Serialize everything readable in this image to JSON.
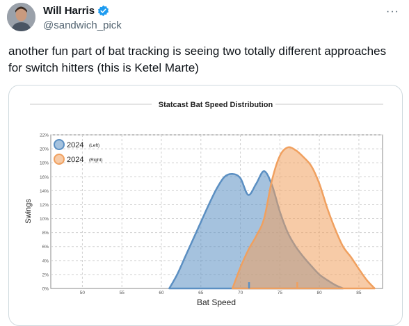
{
  "author": {
    "name": "Will Harris",
    "handle": "@sandwich_pick",
    "verified_icon": "verified-badge-icon",
    "more_icon": "more-horizontal-icon"
  },
  "tweet": {
    "text": "another fun part of bat tracking is seeing two totally different approaches for switch hitters (this is Ketel Marte)"
  },
  "colors": {
    "left": "#5b8fc2",
    "right": "#f0a05f",
    "accent": "#1d9bf0"
  },
  "chart_data": {
    "type": "area",
    "title": "Statcast Bat Speed Distribution",
    "xlabel": "Bat Speed",
    "ylabel": "Swings",
    "xlim": [
      46,
      88
    ],
    "ylim": [
      0,
      22
    ],
    "x_ticks": [
      "50",
      "55",
      "60",
      "65",
      "70",
      "75",
      "80",
      "85"
    ],
    "y_ticks": [
      "0%",
      "2%",
      "4%",
      "6%",
      "8%",
      "10%",
      "12%",
      "14%",
      "16%",
      "18%",
      "20%",
      "22%"
    ],
    "grid": true,
    "legend_position": "top-left",
    "series": [
      {
        "name": "2024",
        "qualifier": "(Left)",
        "color": "#5b8fc2",
        "marker": 71.1,
        "x": [
          61,
          62,
          63,
          64,
          65,
          66,
          67,
          68,
          69,
          70,
          71,
          72,
          73,
          74,
          75,
          76,
          77,
          78,
          79,
          80,
          81,
          82,
          83
        ],
        "y": [
          0,
          2.0,
          4.5,
          7.0,
          9.5,
          12.0,
          14.3,
          16.0,
          16.4,
          15.8,
          13.4,
          15.0,
          16.8,
          14.8,
          11.0,
          8.0,
          6.0,
          4.5,
          3.2,
          2.0,
          1.2,
          0.5,
          0
        ]
      },
      {
        "name": "2024",
        "qualifier": "(Right)",
        "color": "#f0a05f",
        "marker": 77.2,
        "x": [
          69,
          70,
          71,
          72,
          73,
          74,
          75,
          76,
          77,
          78,
          79,
          80,
          81,
          82,
          83,
          84,
          85,
          86,
          87
        ],
        "y": [
          0,
          3.0,
          5.5,
          7.5,
          10.0,
          15.5,
          19.0,
          20.2,
          19.8,
          18.8,
          17.5,
          15.0,
          11.5,
          8.5,
          6.0,
          4.5,
          2.8,
          1.2,
          0
        ]
      }
    ]
  }
}
